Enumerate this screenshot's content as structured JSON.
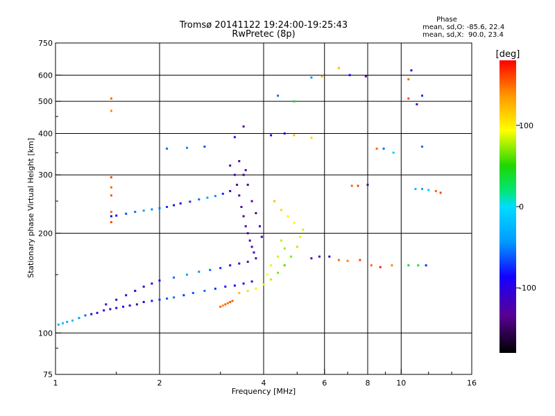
{
  "chart_data": {
    "type": "scatter",
    "title": "Tromsø 20141122 19:24:00-19:25:43",
    "subtitle": "RwPretec (8p)",
    "xlabel": "Frequency [MHz]",
    "ylabel": "Stationary phase Virtual Height [km]",
    "x_scale": "log",
    "y_scale": "log",
    "xlim": [
      1,
      16
    ],
    "ylim": [
      75,
      750
    ],
    "x_ticks": [
      1,
      2,
      4,
      6,
      8,
      10,
      16
    ],
    "x_tick_labels": [
      "1",
      "2",
      "4",
      "6",
      "8",
      "10",
      "16"
    ],
    "y_ticks": [
      75,
      100,
      200,
      300,
      400,
      500,
      600,
      750
    ],
    "y_tick_labels": [
      "75",
      "100",
      "200",
      "300",
      "400",
      "500",
      "600",
      "750"
    ],
    "grid": true,
    "phase_box": {
      "heading": "Phase",
      "line_o": "mean, sd,O: -85.6, 22.4",
      "line_x": "mean, sd,X:  90.0, 23.4"
    },
    "colorbar": {
      "label": "[deg]",
      "range": [
        -180,
        180
      ],
      "ticks": [
        100,
        0,
        -100
      ],
      "tick_labels": [
        "100",
        "0",
        "-100"
      ]
    },
    "series": [
      {
        "points": [
          [
            1.02,
            106,
            -30
          ],
          [
            1.05,
            107,
            -20
          ],
          [
            1.08,
            108,
            -30
          ],
          [
            1.12,
            109,
            -20
          ],
          [
            1.17,
            111,
            -40
          ],
          [
            1.22,
            113,
            -60
          ],
          [
            1.27,
            114,
            -100
          ],
          [
            1.32,
            115,
            -120
          ],
          [
            1.38,
            117,
            -110
          ],
          [
            1.44,
            118,
            -120
          ],
          [
            1.5,
            119,
            -100
          ],
          [
            1.57,
            120,
            -90
          ],
          [
            1.64,
            121,
            -110
          ],
          [
            1.72,
            122,
            -120
          ],
          [
            1.8,
            124,
            -100
          ],
          [
            1.9,
            125,
            -90
          ],
          [
            2.0,
            126,
            -80
          ],
          [
            2.1,
            127,
            -70
          ],
          [
            2.2,
            128,
            -60
          ],
          [
            2.35,
            130,
            -80
          ],
          [
            2.5,
            132,
            -70
          ],
          [
            2.7,
            134,
            -60
          ],
          [
            2.9,
            136,
            -80
          ],
          [
            3.1,
            138,
            -90
          ],
          [
            3.3,
            139,
            -100
          ],
          [
            3.5,
            141,
            -110
          ],
          [
            3.7,
            143,
            -120
          ]
        ]
      },
      {
        "points": [
          [
            1.4,
            122,
            -120
          ],
          [
            1.5,
            126,
            -110
          ],
          [
            1.6,
            130,
            -120
          ],
          [
            1.7,
            134,
            -100
          ],
          [
            1.8,
            138,
            -120
          ],
          [
            1.9,
            141,
            -100
          ],
          [
            2.0,
            144,
            -90
          ],
          [
            2.2,
            147,
            -60
          ],
          [
            2.4,
            150,
            -40
          ],
          [
            2.6,
            153,
            -50
          ],
          [
            2.8,
            155,
            -60
          ],
          [
            3.0,
            157,
            -80
          ],
          [
            3.2,
            160,
            -100
          ],
          [
            3.4,
            162,
            -120
          ],
          [
            3.6,
            164,
            -130
          ]
        ]
      },
      {
        "points": [
          [
            1.45,
            225,
            -100
          ],
          [
            1.5,
            226,
            -90
          ],
          [
            1.6,
            229,
            -70
          ],
          [
            1.7,
            232,
            -60
          ],
          [
            1.8,
            234,
            -40
          ],
          [
            1.9,
            236,
            -50
          ],
          [
            2.0,
            238,
            -60
          ],
          [
            2.1,
            240,
            -80
          ],
          [
            2.2,
            243,
            -90
          ],
          [
            2.3,
            246,
            -100
          ],
          [
            2.45,
            249,
            -80
          ],
          [
            2.6,
            253,
            -60
          ],
          [
            2.75,
            256,
            -40
          ],
          [
            2.9,
            259,
            -50
          ],
          [
            3.05,
            263,
            -80
          ],
          [
            3.2,
            268,
            -110
          ]
        ]
      },
      {
        "points": [
          [
            3.2,
            320,
            -140
          ],
          [
            3.3,
            300,
            -130
          ],
          [
            3.35,
            280,
            -140
          ],
          [
            3.4,
            260,
            -120
          ],
          [
            3.45,
            240,
            -130
          ],
          [
            3.5,
            225,
            -140
          ],
          [
            3.55,
            210,
            -120
          ],
          [
            3.6,
            200,
            -130
          ],
          [
            3.65,
            190,
            -140
          ],
          [
            3.7,
            182,
            -130
          ],
          [
            3.75,
            175,
            -120
          ],
          [
            3.8,
            168,
            -130
          ],
          [
            3.5,
            300,
            -150
          ],
          [
            3.6,
            280,
            -140
          ],
          [
            3.7,
            250,
            -130
          ],
          [
            3.8,
            230,
            -140
          ],
          [
            3.9,
            210,
            -120
          ],
          [
            3.95,
            195,
            -130
          ],
          [
            3.4,
            330,
            -140
          ],
          [
            3.55,
            310,
            -120
          ]
        ]
      },
      {
        "points": [
          [
            3.4,
            132,
            120
          ],
          [
            3.6,
            134,
            110
          ],
          [
            3.8,
            136,
            100
          ],
          [
            4.0,
            140,
            90
          ],
          [
            4.2,
            145,
            80
          ],
          [
            4.4,
            152,
            70
          ],
          [
            4.6,
            160,
            60
          ],
          [
            4.8,
            170,
            70
          ],
          [
            5.0,
            182,
            80
          ],
          [
            5.1,
            195,
            90
          ],
          [
            5.2,
            205,
            85
          ],
          [
            4.9,
            215,
            95
          ],
          [
            4.7,
            225,
            100
          ],
          [
            4.5,
            235,
            110
          ],
          [
            4.3,
            250,
            120
          ],
          [
            4.5,
            190,
            80
          ],
          [
            4.6,
            180,
            75
          ],
          [
            4.4,
            170,
            85
          ],
          [
            4.2,
            160,
            90
          ],
          [
            4.1,
            150,
            95
          ]
        ]
      },
      {
        "points": [
          [
            3.0,
            120,
            150
          ],
          [
            3.05,
            121,
            140
          ],
          [
            3.1,
            122,
            150
          ],
          [
            3.15,
            123,
            145
          ],
          [
            3.2,
            124,
            155
          ],
          [
            3.25,
            125,
            150
          ]
        ]
      },
      {
        "points": [
          [
            5.5,
            168,
            -130
          ],
          [
            5.8,
            170,
            -120
          ],
          [
            6.2,
            170,
            -110
          ],
          [
            6.6,
            166,
            150
          ],
          [
            7.0,
            165,
            140
          ],
          [
            7.6,
            166,
            160
          ],
          [
            8.2,
            160,
            150
          ],
          [
            8.7,
            158,
            170
          ],
          [
            9.4,
            160,
            140
          ],
          [
            10.5,
            160,
            40
          ],
          [
            11.2,
            160,
            30
          ],
          [
            11.8,
            160,
            -80
          ],
          [
            11.0,
            272,
            -20
          ],
          [
            11.5,
            272,
            -30
          ],
          [
            12.0,
            270,
            -10
          ],
          [
            12.6,
            268,
            150
          ],
          [
            13.0,
            265,
            160
          ],
          [
            7.2,
            278,
            150
          ],
          [
            7.5,
            278,
            160
          ],
          [
            8.0,
            280,
            -140
          ]
        ]
      },
      {
        "points": [
          [
            1.45,
            510,
            150
          ],
          [
            1.45,
            468,
            140
          ],
          [
            1.45,
            295,
            160
          ],
          [
            1.45,
            275,
            150
          ],
          [
            1.45,
            260,
            155
          ],
          [
            1.45,
            232,
            150
          ],
          [
            1.45,
            216,
            160
          ],
          [
            2.1,
            360,
            -60
          ],
          [
            2.4,
            362,
            -50
          ],
          [
            2.7,
            365,
            -70
          ],
          [
            3.3,
            390,
            -90
          ],
          [
            3.5,
            420,
            -130
          ],
          [
            4.2,
            395,
            -100
          ],
          [
            4.6,
            400,
            -90
          ],
          [
            4.9,
            395,
            120
          ],
          [
            5.5,
            590,
            -50
          ],
          [
            5.9,
            595,
            130
          ],
          [
            6.6,
            630,
            120
          ],
          [
            7.1,
            600,
            -100
          ],
          [
            7.9,
            595,
            -130
          ],
          [
            4.4,
            520,
            -60
          ],
          [
            4.9,
            500,
            40
          ],
          [
            5.5,
            388,
            110
          ],
          [
            8.5,
            360,
            150
          ],
          [
            8.9,
            360,
            -60
          ],
          [
            9.5,
            350,
            -10
          ],
          [
            10.5,
            583,
            150
          ],
          [
            10.5,
            510,
            160
          ],
          [
            10.7,
            620,
            -110
          ],
          [
            11.1,
            490,
            -120
          ],
          [
            11.5,
            520,
            -80
          ],
          [
            11.5,
            365,
            -60
          ]
        ]
      }
    ]
  }
}
